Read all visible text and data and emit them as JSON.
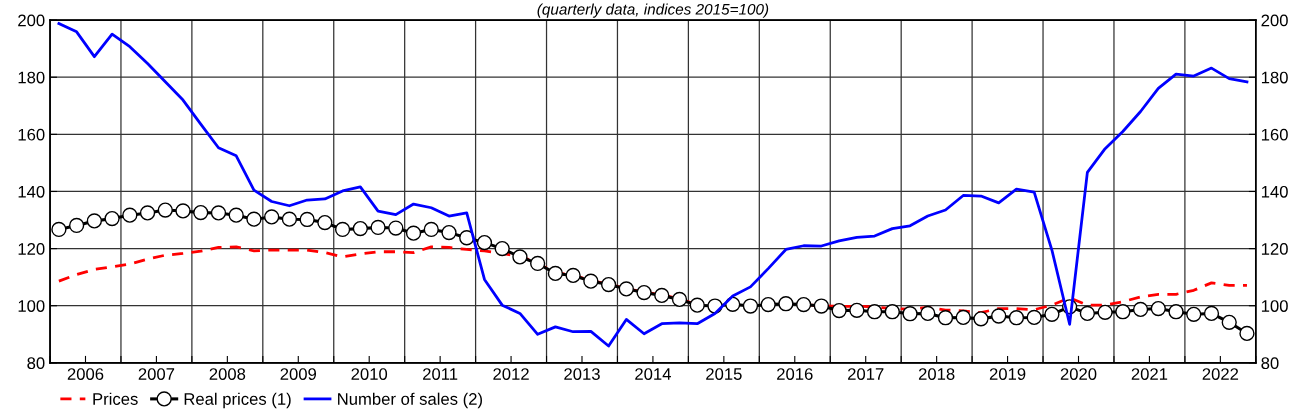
{
  "chart_data": {
    "type": "line",
    "subtitle": "(quarterly data, indices 2015=100)",
    "x": [
      2006.125,
      2006.375,
      2006.625,
      2006.875,
      2007.125,
      2007.375,
      2007.625,
      2007.875,
      2008.125,
      2008.375,
      2008.625,
      2008.875,
      2009.125,
      2009.375,
      2009.625,
      2009.875,
      2010.125,
      2010.375,
      2010.625,
      2010.875,
      2011.125,
      2011.375,
      2011.625,
      2011.875,
      2012.125,
      2012.375,
      2012.625,
      2012.875,
      2013.125,
      2013.375,
      2013.625,
      2013.875,
      2014.125,
      2014.375,
      2014.625,
      2014.875,
      2015.125,
      2015.375,
      2015.625,
      2015.875,
      2016.125,
      2016.375,
      2016.625,
      2016.875,
      2017.125,
      2017.375,
      2017.625,
      2017.875,
      2018.125,
      2018.375,
      2018.625,
      2018.875,
      2019.125,
      2019.375,
      2019.625,
      2019.875,
      2020.125,
      2020.375,
      2020.625,
      2020.875,
      2021.125,
      2021.375,
      2021.625,
      2021.875,
      2022.125,
      2022.375,
      2022.625,
      2022.875
    ],
    "series": [
      {
        "name": "Prices",
        "color": "#ff0000",
        "line_style": "dashed",
        "marker": "none",
        "values": [
          108.6,
          110.9,
          112.7,
          113.6,
          114.6,
          116.3,
          117.7,
          118.3,
          119.1,
          120.4,
          120.6,
          119.2,
          119.5,
          119.5,
          119.5,
          118.6,
          117.1,
          118.1,
          118.9,
          118.9,
          118.6,
          120.6,
          120.4,
          119.7,
          119.2,
          118.3,
          117.3,
          115,
          111.5,
          110.8,
          108.8,
          107.6,
          106,
          104.8,
          103.8,
          102.4,
          100.3,
          null,
          null,
          null,
          null,
          null,
          100.4,
          100,
          99.8,
          99.8,
          99.6,
          99,
          98.8,
          99.4,
          98.5,
          98.2,
          97.6,
          99,
          99,
          98.6,
          100.2,
          102.8,
          100.2,
          100.2,
          101.4,
          103.1,
          104,
          104,
          105.4,
          108,
          107.1,
          107.1
        ]
      },
      {
        "name": "Real prices (1)",
        "color": "#000000",
        "line_style": "solid",
        "marker": "circle",
        "values": [
          126.7,
          128.1,
          129.7,
          130.5,
          131.7,
          132.5,
          133.5,
          133.2,
          132.6,
          132.5,
          131.7,
          130.3,
          131.1,
          130.3,
          130.2,
          129.1,
          126.7,
          127,
          127.4,
          127.2,
          125.4,
          126.7,
          125.6,
          123.8,
          122.1,
          120,
          117.1,
          114.8,
          111.3,
          110.6,
          108.6,
          107.4,
          105.9,
          104.6,
          103.6,
          102.2,
          100.2,
          99.9,
          100.5,
          99.9,
          100.4,
          100.7,
          100.4,
          99.9,
          98.3,
          98.4,
          97.9,
          97.9,
          97.2,
          97.3,
          95.8,
          95.9,
          95.4,
          96.4,
          95.8,
          95.9,
          97,
          99.6,
          97.3,
          97.7,
          97.9,
          98.7,
          99,
          97.9,
          97,
          97.3,
          94.2,
          90.3
        ]
      },
      {
        "name": "Number of sales (2)",
        "color": "#0000ff",
        "line_style": "solid",
        "marker": "none",
        "values": [
          198.8,
          195.9,
          187.2,
          195.1,
          190.7,
          184.8,
          178.4,
          172,
          163.6,
          155.3,
          152.5,
          140.5,
          136.5,
          135,
          137,
          137.4,
          140.2,
          141.6,
          133.1,
          131.9,
          135.6,
          134.3,
          131.4,
          132.5,
          109.2,
          100.2,
          97.3,
          90,
          92.6,
          90.9,
          91,
          85.9,
          95.2,
          90.2,
          93.7,
          94,
          93.7,
          97.3,
          103.4,
          106.6,
          113,
          119.7,
          121,
          120.9,
          122.7,
          123.9,
          124.4,
          127,
          128,
          131.4,
          133.5,
          138.6,
          138.4,
          136,
          140.8,
          139.8,
          119.5,
          93.5,
          146.7,
          155,
          161,
          168,
          176.1,
          181.1,
          180.4,
          183.2,
          179.5,
          178.4
        ]
      }
    ],
    "xlim": [
      2006,
      2023
    ],
    "xticks": [
      {
        "value": 2006,
        "label": null
      },
      {
        "value": 2006.5,
        "label": "2006"
      },
      {
        "value": 2007,
        "label": null
      },
      {
        "value": 2007.5,
        "label": "2007"
      },
      {
        "value": 2008,
        "label": null
      },
      {
        "value": 2008.5,
        "label": "2008"
      },
      {
        "value": 2009,
        "label": null
      },
      {
        "value": 2009.5,
        "label": "2009"
      },
      {
        "value": 2010,
        "label": null
      },
      {
        "value": 2010.5,
        "label": "2010"
      },
      {
        "value": 2011,
        "label": null
      },
      {
        "value": 2011.5,
        "label": "2011"
      },
      {
        "value": 2012,
        "label": null
      },
      {
        "value": 2012.5,
        "label": "2012"
      },
      {
        "value": 2013,
        "label": null
      },
      {
        "value": 2013.5,
        "label": "2013"
      },
      {
        "value": 2014,
        "label": null
      },
      {
        "value": 2014.5,
        "label": "2014"
      },
      {
        "value": 2015,
        "label": null
      },
      {
        "value": 2015.5,
        "label": "2015"
      },
      {
        "value": 2016,
        "label": null
      },
      {
        "value": 2016.5,
        "label": "2016"
      },
      {
        "value": 2017,
        "label": null
      },
      {
        "value": 2017.5,
        "label": "2017"
      },
      {
        "value": 2018,
        "label": null
      },
      {
        "value": 2018.5,
        "label": "2018"
      },
      {
        "value": 2019,
        "label": null
      },
      {
        "value": 2019.5,
        "label": "2019"
      },
      {
        "value": 2020,
        "label": null
      },
      {
        "value": 2020.5,
        "label": "2020"
      },
      {
        "value": 2021,
        "label": null
      },
      {
        "value": 2021.5,
        "label": "2021"
      },
      {
        "value": 2022,
        "label": null
      },
      {
        "value": 2022.5,
        "label": "2022"
      },
      {
        "value": 2023,
        "label": null
      }
    ],
    "ylim": [
      80,
      200
    ],
    "yticks": [
      80,
      100,
      120,
      140,
      160,
      180,
      200
    ],
    "y2lim": [
      80,
      200
    ],
    "y2ticks": [
      80,
      100,
      120,
      140,
      160,
      180,
      200
    ],
    "grid": true,
    "legend": "bottom left"
  }
}
